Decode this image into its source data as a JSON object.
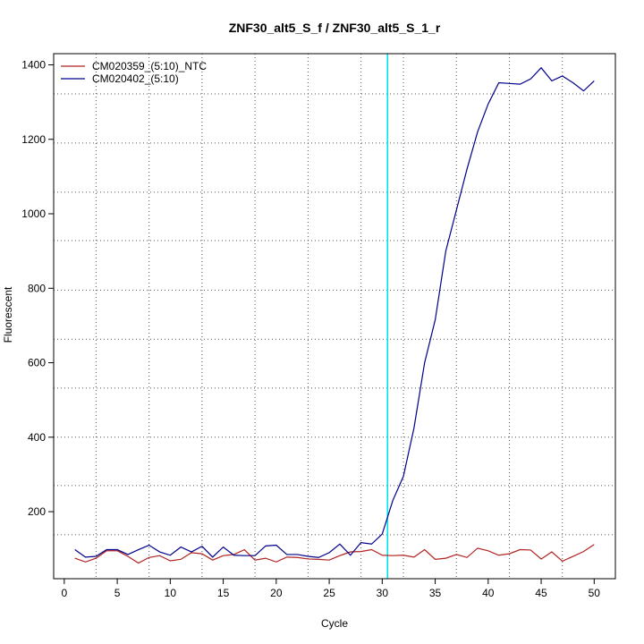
{
  "chart_data": {
    "type": "line",
    "title": "ZNF30_alt5_S_f / ZNF30_alt5_S_1_r",
    "xlabel": "Cycle",
    "ylabel": "Fluorescent",
    "xlim": [
      -1,
      52
    ],
    "ylim": [
      20,
      1430
    ],
    "x_ticks": [
      0,
      5,
      10,
      15,
      20,
      25,
      30,
      35,
      40,
      45,
      50
    ],
    "y_ticks": [
      200,
      400,
      600,
      800,
      1000,
      1200,
      1400
    ],
    "grid": true,
    "grid_style": "dotted",
    "grid_x": [
      3,
      8,
      13,
      18,
      23,
      28,
      32,
      37,
      42,
      47
    ],
    "grid_y": [
      138,
      270,
      400,
      532,
      663,
      795,
      928,
      1058,
      1190,
      1322
    ],
    "threshold_line": {
      "x": 30.5,
      "color": "#00e5ee"
    },
    "legend_position": "top-left",
    "x": [
      1,
      2,
      3,
      4,
      5,
      6,
      7,
      8,
      9,
      10,
      11,
      12,
      13,
      14,
      15,
      16,
      17,
      18,
      19,
      20,
      21,
      22,
      23,
      24,
      25,
      26,
      27,
      28,
      29,
      30,
      31,
      32,
      33,
      34,
      35,
      36,
      37,
      38,
      39,
      40,
      41,
      42,
      43,
      44,
      45,
      46,
      47,
      48,
      49,
      50
    ],
    "series": [
      {
        "name": "CM020359_(5:10)_NTC",
        "color": "#b22222",
        "values": [
          75,
          65,
          75,
          95,
          95,
          80,
          62,
          77,
          82,
          68,
          72,
          90,
          87,
          70,
          82,
          85,
          98,
          70,
          75,
          65,
          78,
          77,
          73,
          72,
          70,
          82,
          92,
          93,
          98,
          83,
          82,
          83,
          78,
          98,
          72,
          75,
          85,
          77,
          102,
          95,
          83,
          87,
          98,
          97,
          73,
          92,
          67,
          80,
          93,
          112
        ]
      },
      {
        "name": "CM020402_(5:10)",
        "color": "#00008b",
        "values": [
          98,
          78,
          80,
          98,
          98,
          85,
          98,
          110,
          92,
          83,
          105,
          92,
          107,
          78,
          105,
          83,
          82,
          82,
          108,
          110,
          85,
          85,
          80,
          77,
          90,
          113,
          83,
          117,
          113,
          140,
          230,
          295,
          425,
          600,
          715,
          900,
          1010,
          1120,
          1220,
          1295,
          1352,
          1350,
          1348,
          1362,
          1392,
          1357,
          1370,
          1352,
          1330,
          1357
        ]
      }
    ]
  }
}
